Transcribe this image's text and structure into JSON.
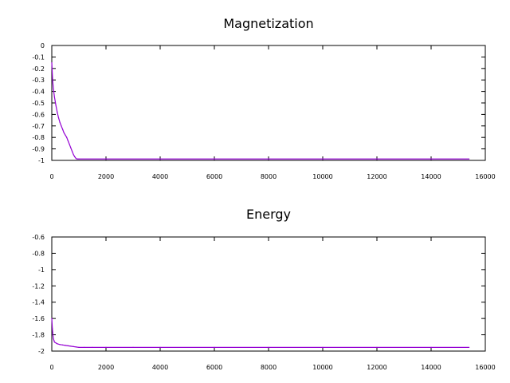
{
  "chart_data": [
    {
      "type": "line",
      "title": "Magnetization",
      "xlabel": "",
      "ylabel": "",
      "xlim": [
        0,
        16000
      ],
      "ylim": [
        -1,
        0
      ],
      "grid": false,
      "x_ticks": [
        "0",
        "2000",
        "4000",
        "6000",
        "8000",
        "10000",
        "12000",
        "14000",
        "16000"
      ],
      "y_ticks": [
        "0",
        "-0.1",
        "-0.2",
        "-0.3",
        "-0.4",
        "-0.5",
        "-0.6",
        "-0.7",
        "-0.8",
        "-0.9",
        "-1"
      ],
      "color": "#9400d3",
      "series": [
        {
          "x": [
            0,
            30,
            60,
            100,
            150,
            200,
            250,
            300,
            350,
            400,
            450,
            500,
            550,
            600,
            650,
            700,
            750,
            800,
            850,
            900,
            950,
            1000,
            2000,
            4000,
            6000,
            8000,
            10000,
            12000,
            14000,
            15400
          ],
          "values": [
            -0.15,
            -0.3,
            -0.38,
            -0.45,
            -0.52,
            -0.58,
            -0.63,
            -0.67,
            -0.7,
            -0.73,
            -0.76,
            -0.78,
            -0.8,
            -0.83,
            -0.86,
            -0.89,
            -0.92,
            -0.95,
            -0.97,
            -0.985,
            -0.988,
            -0.988,
            -0.988,
            -0.988,
            -0.988,
            -0.988,
            -0.988,
            -0.988,
            -0.988,
            -0.988
          ]
        }
      ]
    },
    {
      "type": "line",
      "title": "Energy",
      "xlabel": "",
      "ylabel": "",
      "xlim": [
        0,
        16000
      ],
      "ylim": [
        -2,
        -0.6
      ],
      "grid": false,
      "x_ticks": [
        "0",
        "2000",
        "4000",
        "6000",
        "8000",
        "10000",
        "12000",
        "14000",
        "16000"
      ],
      "y_ticks": [
        "-0.6",
        "-0.8",
        "-1",
        "-1.2",
        "-1.4",
        "-1.6",
        "-1.8",
        "-2"
      ],
      "color": "#9400d3",
      "series": [
        {
          "x": [
            0,
            20,
            40,
            60,
            80,
            100,
            150,
            200,
            300,
            400,
            500,
            600,
            700,
            800,
            900,
            1000,
            1200,
            1500,
            2000,
            3000,
            4000,
            6000,
            8000,
            10000,
            12000,
            14000,
            15400
          ],
          "values": [
            -1.6,
            -1.72,
            -1.8,
            -1.85,
            -1.87,
            -1.89,
            -1.9,
            -1.91,
            -1.92,
            -1.925,
            -1.93,
            -1.935,
            -1.94,
            -1.945,
            -1.95,
            -1.955,
            -1.955,
            -1.955,
            -1.955,
            -1.955,
            -1.955,
            -1.955,
            -1.955,
            -1.955,
            -1.955,
            -1.955,
            -1.955
          ]
        }
      ]
    }
  ]
}
